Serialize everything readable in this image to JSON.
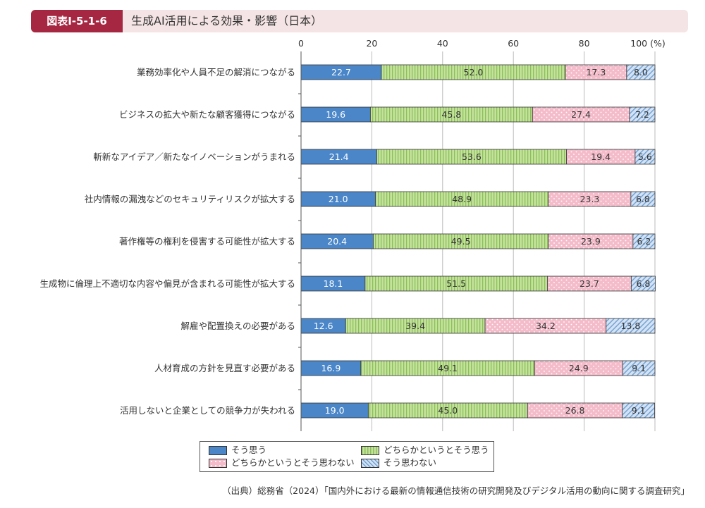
{
  "header": {
    "figure_id": "図表Ⅰ-5-1-6",
    "title": "生成AI活用による効果・影響（日本）"
  },
  "legend": [
    {
      "label": "そう思う"
    },
    {
      "label": "どちらかというとそう思う"
    },
    {
      "label": "どちらかというとそう思わない"
    },
    {
      "label": "そう思わない"
    }
  ],
  "source": "（出典）総務省（2024）「国内外における最新の情報通信技術の研究開発及びデジタル活用の動向に関する調査研究」",
  "chart_data": {
    "type": "bar",
    "orientation": "horizontal",
    "stacked": true,
    "title": "生成AI活用による効果・影響（日本）",
    "xlim": [
      0,
      100
    ],
    "x_ticks": [
      "0",
      "20",
      "40",
      "60",
      "80",
      "100 (%)"
    ],
    "categories": [
      "業務効率化や人員不足の解消につながる",
      "ビジネスの拡大や新たな顧客獲得につながる",
      "斬新なアイデア／新たなイノベーションがうまれる",
      "社内情報の漏洩などのセキュリティリスクが拡大する",
      "著作権等の権利を侵害する可能性が拡大する",
      "生成物に倫理上不適切な内容や偏見が含まれる可能性が拡大する",
      "解雇や配置換えの必要がある",
      "人材育成の方針を見直す必要がある",
      "活用しないと企業としての競争力が失われる"
    ],
    "series": [
      {
        "name": "そう思う",
        "color": "#4a86c8",
        "values": [
          22.7,
          19.6,
          21.4,
          21.0,
          20.4,
          18.1,
          12.6,
          16.9,
          19.0
        ]
      },
      {
        "name": "どちらかというとそう思う",
        "color": "#b9dc8c",
        "values": [
          52.0,
          45.8,
          53.6,
          48.9,
          49.5,
          51.5,
          39.4,
          49.1,
          45.0
        ]
      },
      {
        "name": "どちらかというとそう思わない",
        "color": "#f2b8c6",
        "values": [
          17.3,
          27.4,
          19.4,
          23.3,
          23.9,
          23.7,
          34.2,
          24.9,
          26.8
        ]
      },
      {
        "name": "そう思わない",
        "color": "#bcd4ee",
        "values": [
          8.0,
          7.2,
          5.6,
          6.8,
          6.2,
          6.8,
          13.8,
          9.1,
          9.1
        ]
      }
    ]
  }
}
